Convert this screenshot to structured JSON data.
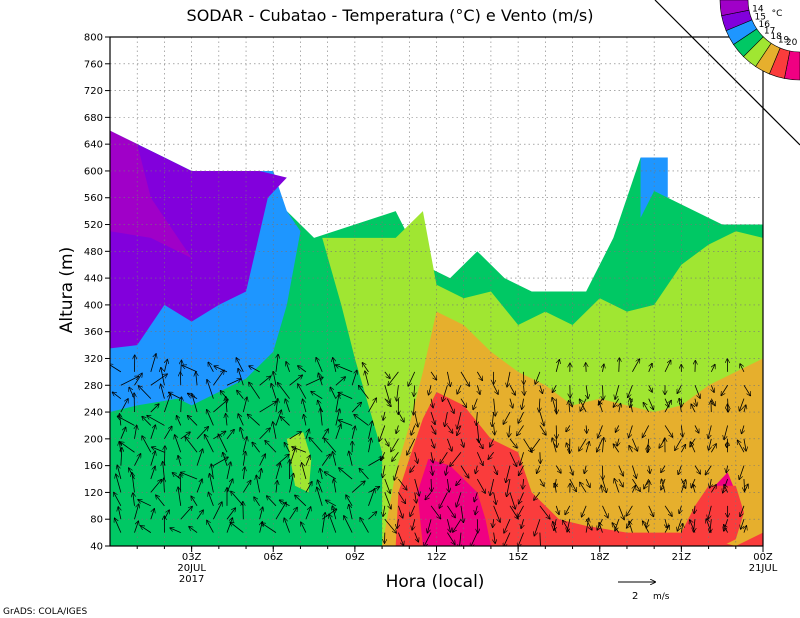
{
  "chart_data": {
    "type": "heatmap",
    "title": "SODAR - Cubatao - Temperatura (°C) e Vento (m/s)",
    "xlabel": "Hora (local)",
    "ylabel": "Altura (m)",
    "ylim": [
      40,
      800
    ],
    "yticks": [
      40,
      80,
      120,
      160,
      200,
      240,
      280,
      320,
      360,
      400,
      440,
      480,
      520,
      560,
      600,
      640,
      680,
      720,
      760,
      800
    ],
    "xlim_hours": [
      0,
      24
    ],
    "xticks": [
      {
        "h": 3,
        "label": "03Z",
        "sub1": "20JUL",
        "sub2": "2017"
      },
      {
        "h": 6,
        "label": "06Z",
        "sub1": "",
        "sub2": ""
      },
      {
        "h": 9,
        "label": "09Z",
        "sub1": "",
        "sub2": ""
      },
      {
        "h": 12,
        "label": "12Z",
        "sub1": "",
        "sub2": ""
      },
      {
        "h": 15,
        "label": "15Z",
        "sub1": "",
        "sub2": ""
      },
      {
        "h": 18,
        "label": "18Z",
        "sub1": "",
        "sub2": ""
      },
      {
        "h": 21,
        "label": "21Z",
        "sub1": "",
        "sub2": ""
      },
      {
        "h": 24,
        "label": "00Z",
        "sub1": "21JUL",
        "sub2": ""
      }
    ],
    "grid": true,
    "legend": {
      "unit": "°C",
      "levels": [
        14,
        15,
        16,
        17,
        18,
        19,
        20
      ],
      "colors": [
        "#a000c8",
        "#8200dc",
        "#1e96ff",
        "#00c864",
        "#a0e632",
        "#e6af2d",
        "#fa3c3c",
        "#f00082"
      ],
      "placement": "top-right"
    },
    "wind_scale": {
      "value": "2",
      "unit": "m/s"
    },
    "top_height": [
      [
        0.0,
        660
      ],
      [
        1.0,
        640
      ],
      [
        2.0,
        620
      ],
      [
        3.0,
        600
      ],
      [
        5.5,
        600
      ],
      [
        6.5,
        540
      ],
      [
        7.5,
        500
      ],
      [
        10.5,
        540
      ],
      [
        11.5,
        460
      ],
      [
        12.5,
        440
      ],
      [
        13.5,
        480
      ],
      [
        14.5,
        440
      ],
      [
        15.5,
        420
      ],
      [
        17.5,
        420
      ],
      [
        18.5,
        500
      ],
      [
        19.5,
        620
      ],
      [
        20.5,
        560
      ],
      [
        21.5,
        540
      ],
      [
        22.5,
        520
      ],
      [
        24.0,
        520
      ]
    ],
    "isotherms": {
      "t14_5": [
        [
          0.0,
          510
        ],
        [
          1.5,
          500
        ],
        [
          3.0,
          470
        ],
        [
          4.5,
          450
        ],
        [
          5.5,
          440
        ],
        [
          6.0,
          600
        ]
      ],
      "t15": [
        [
          0.0,
          335
        ],
        [
          1.0,
          340
        ],
        [
          2.0,
          400
        ],
        [
          3.0,
          375
        ],
        [
          4.0,
          400
        ],
        [
          5.0,
          420
        ],
        [
          5.8,
          560
        ],
        [
          6.5,
          590
        ]
      ],
      "t16": [
        [
          0.0,
          240
        ],
        [
          1.0,
          250
        ],
        [
          2.5,
          260
        ],
        [
          3.0,
          250
        ],
        [
          4.0,
          270
        ],
        [
          5.0,
          290
        ],
        [
          6.0,
          330
        ],
        [
          6.5,
          400
        ],
        [
          7.0,
          510
        ]
      ],
      "t16_top": [
        [
          19.5,
          530
        ],
        [
          20.5,
          560
        ],
        [
          21.5,
          580
        ],
        [
          22.5,
          600
        ],
        [
          24.0,
          600
        ]
      ],
      "t17": [
        [
          7.8,
          500
        ],
        [
          8.5,
          400
        ],
        [
          9.0,
          320
        ],
        [
          9.5,
          250
        ],
        [
          10.0,
          180
        ],
        [
          10.0,
          100
        ],
        [
          10.0,
          40
        ]
      ],
      "t17_right": [
        [
          11.5,
          540
        ],
        [
          12.0,
          430
        ],
        [
          13.0,
          410
        ],
        [
          14.0,
          420
        ],
        [
          15.0,
          370
        ],
        [
          16.0,
          390
        ],
        [
          17.0,
          370
        ],
        [
          18.0,
          410
        ],
        [
          19.0,
          390
        ],
        [
          20.0,
          400
        ],
        [
          21.0,
          460
        ],
        [
          22.0,
          490
        ],
        [
          23.0,
          510
        ],
        [
          24.0,
          500
        ]
      ],
      "t18": [
        [
          10.0,
          40
        ],
        [
          10.5,
          150
        ],
        [
          11.0,
          220
        ],
        [
          11.5,
          300
        ],
        [
          12.0,
          390
        ],
        [
          13.0,
          370
        ],
        [
          14.0,
          330
        ],
        [
          15.0,
          300
        ],
        [
          16.0,
          280
        ],
        [
          17.0,
          250
        ],
        [
          18.0,
          260
        ],
        [
          19.0,
          250
        ],
        [
          20.0,
          240
        ],
        [
          21.0,
          250
        ],
        [
          22.0,
          280
        ],
        [
          23.0,
          300
        ],
        [
          24.0,
          320
        ]
      ],
      "t19": [
        [
          10.5,
          40
        ],
        [
          10.6,
          120
        ],
        [
          11.0,
          170
        ],
        [
          11.5,
          230
        ],
        [
          12.0,
          270
        ],
        [
          13.0,
          250
        ],
        [
          14.0,
          200
        ],
        [
          15.0,
          180
        ],
        [
          15.5,
          120
        ],
        [
          16.5,
          80
        ],
        [
          17.5,
          70
        ],
        [
          19.0,
          60
        ],
        [
          20.0,
          60
        ],
        [
          21.0,
          60
        ],
        [
          22.0,
          50
        ],
        [
          23.0,
          40
        ],
        [
          24.0,
          60
        ]
      ],
      "t20": [
        [
          11.5,
          40
        ],
        [
          11.3,
          120
        ],
        [
          11.7,
          170
        ],
        [
          12.5,
          160
        ],
        [
          13.5,
          120
        ],
        [
          13.8,
          80
        ],
        [
          14.0,
          40
        ]
      ]
    },
    "patches": [
      {
        "color": "#a0e632",
        "points": [
          [
            6.5,
            200
          ],
          [
            6.8,
            130
          ],
          [
            7.3,
            120
          ],
          [
            7.4,
            170
          ],
          [
            7.1,
            210
          ]
        ]
      },
      {
        "color": "#f00082",
        "points": [
          [
            21.0,
            40
          ],
          [
            21.5,
            80
          ],
          [
            22.0,
            120
          ],
          [
            22.7,
            150
          ],
          [
            23.0,
            120
          ],
          [
            23.0,
            80
          ],
          [
            22.5,
            50
          ],
          [
            22.0,
            40
          ]
        ]
      }
    ],
    "wind_hours": [
      0.4,
      0.9,
      1.5,
      2.0,
      2.6,
      3.2,
      3.8,
      4.3,
      4.9,
      5.5,
      6.1,
      6.6,
      7.2,
      7.8,
      8.3,
      8.9,
      9.5,
      10.1,
      10.6,
      11.2,
      11.8,
      12.4,
      12.9,
      13.5,
      14.1,
      14.7,
      15.2,
      15.8,
      16.4,
      16.9,
      17.5,
      18.1,
      18.7,
      19.2,
      19.8,
      20.4,
      21.0,
      21.5,
      22.1,
      22.7,
      23.3
    ],
    "wind_heights": [
      60,
      80,
      100,
      120,
      140,
      160,
      180,
      200,
      220,
      240,
      260,
      280,
      300
    ]
  },
  "footer": {
    "credit": "GrADS: COLA/IGES"
  }
}
